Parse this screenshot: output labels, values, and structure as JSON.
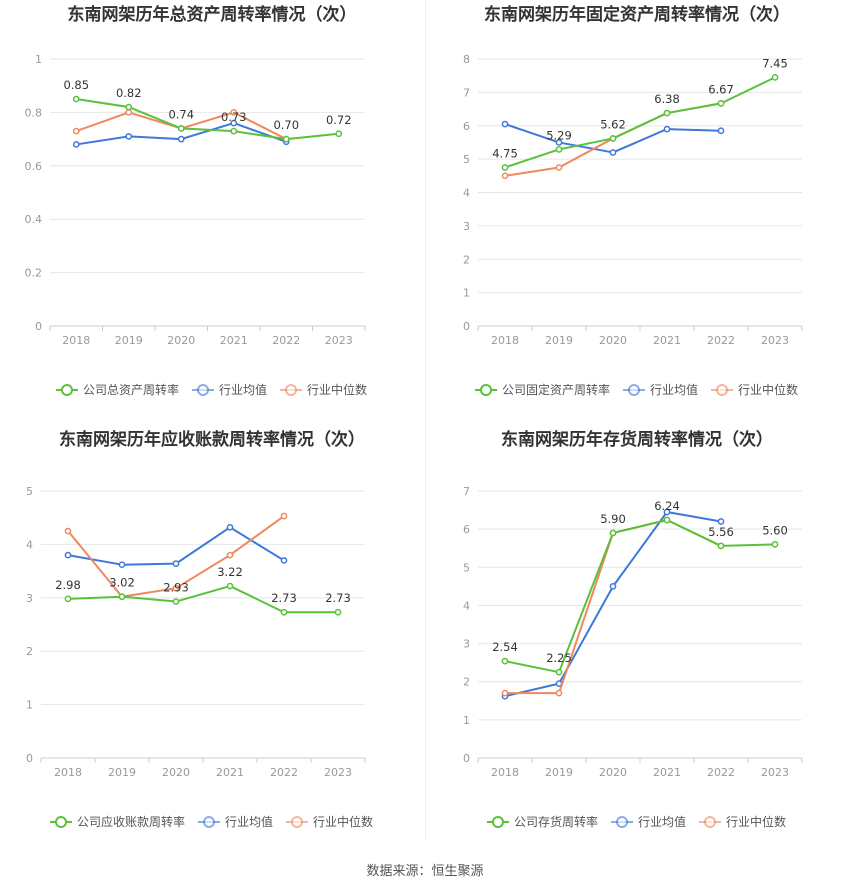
{
  "source": "数据来源：恒生聚源",
  "colors": {
    "company": "#5ac13a",
    "avg": "#3e78d8",
    "median": "#f0875f"
  },
  "chart_data": [
    {
      "type": "line",
      "title": "东南网架历年总资产周转率情况（次）",
      "x": [
        "2018",
        "2019",
        "2020",
        "2021",
        "2022",
        "2023"
      ],
      "ylim": [
        0,
        1
      ],
      "yticks": [
        "0",
        "0.2",
        "0.4",
        "0.6",
        "0.8",
        "1"
      ],
      "legend": "bottom",
      "series": [
        {
          "name": "公司总资产周转率",
          "key": "company",
          "values": [
            0.85,
            0.82,
            0.74,
            0.73,
            0.7,
            0.72
          ],
          "labels": [
            "0.85",
            "0.82",
            "0.74",
            "0.73",
            "0.70",
            "0.72"
          ]
        },
        {
          "name": "行业均值",
          "key": "avg",
          "values": [
            0.68,
            0.71,
            0.7,
            0.76,
            0.69,
            null
          ]
        },
        {
          "name": "行业中位数",
          "key": "median",
          "values": [
            0.73,
            0.8,
            0.74,
            0.8,
            0.7,
            null
          ]
        }
      ]
    },
    {
      "type": "line",
      "title": "东南网架历年固定资产周转率情况（次）",
      "x": [
        "2018",
        "2019",
        "2020",
        "2021",
        "2022",
        "2023"
      ],
      "ylim": [
        0,
        8
      ],
      "yticks": [
        "0",
        "1",
        "2",
        "3",
        "4",
        "5",
        "6",
        "7",
        "8"
      ],
      "legend": "bottom",
      "series": [
        {
          "name": "公司固定资产周转率",
          "key": "company",
          "values": [
            4.75,
            5.29,
            5.62,
            6.38,
            6.67,
            7.45
          ],
          "labels": [
            "4.75",
            "5.29",
            "5.62",
            "6.38",
            "6.67",
            "7.45"
          ]
        },
        {
          "name": "行业均值",
          "key": "avg",
          "values": [
            6.05,
            5.5,
            5.2,
            5.9,
            5.85,
            null
          ]
        },
        {
          "name": "行业中位数",
          "key": "median",
          "values": [
            4.5,
            4.75,
            5.62,
            6.38,
            6.67,
            null
          ]
        }
      ]
    },
    {
      "type": "line",
      "title": "东南网架历年应收账款周转率情况（次）",
      "x": [
        "2018",
        "2019",
        "2020",
        "2021",
        "2022",
        "2023"
      ],
      "ylim": [
        0,
        5
      ],
      "yticks": [
        "0",
        "1",
        "2",
        "3",
        "4",
        "5"
      ],
      "legend": "bottom",
      "series": [
        {
          "name": "公司应收账款周转率",
          "key": "company",
          "values": [
            2.98,
            3.02,
            2.93,
            3.22,
            2.73,
            2.73
          ],
          "labels": [
            "2.98",
            "3.02",
            "2.93",
            "3.22",
            "2.73",
            "2.73"
          ]
        },
        {
          "name": "行业均值",
          "key": "avg",
          "values": [
            3.8,
            3.62,
            3.64,
            4.32,
            3.7,
            null
          ]
        },
        {
          "name": "行业中位数",
          "key": "median",
          "values": [
            4.25,
            3.02,
            3.18,
            3.8,
            4.53,
            null
          ]
        }
      ]
    },
    {
      "type": "line",
      "title": "东南网架历年存货周转率情况（次）",
      "x": [
        "2018",
        "2019",
        "2020",
        "2021",
        "2022",
        "2023"
      ],
      "ylim": [
        0,
        7
      ],
      "yticks": [
        "0",
        "1",
        "2",
        "3",
        "4",
        "5",
        "6",
        "7"
      ],
      "legend": "bottom",
      "series": [
        {
          "name": "公司存货周转率",
          "key": "company",
          "values": [
            2.54,
            2.25,
            5.9,
            6.24,
            5.56,
            5.6
          ],
          "labels": [
            "2.54",
            "2.25",
            "5.90",
            "6.24",
            "5.56",
            "5.60"
          ]
        },
        {
          "name": "行业均值",
          "key": "avg",
          "values": [
            1.62,
            1.95,
            4.5,
            6.45,
            6.2,
            null
          ]
        },
        {
          "name": "行业中位数",
          "key": "median",
          "values": [
            1.7,
            1.7,
            5.9,
            6.24,
            5.56,
            null
          ]
        }
      ]
    }
  ]
}
